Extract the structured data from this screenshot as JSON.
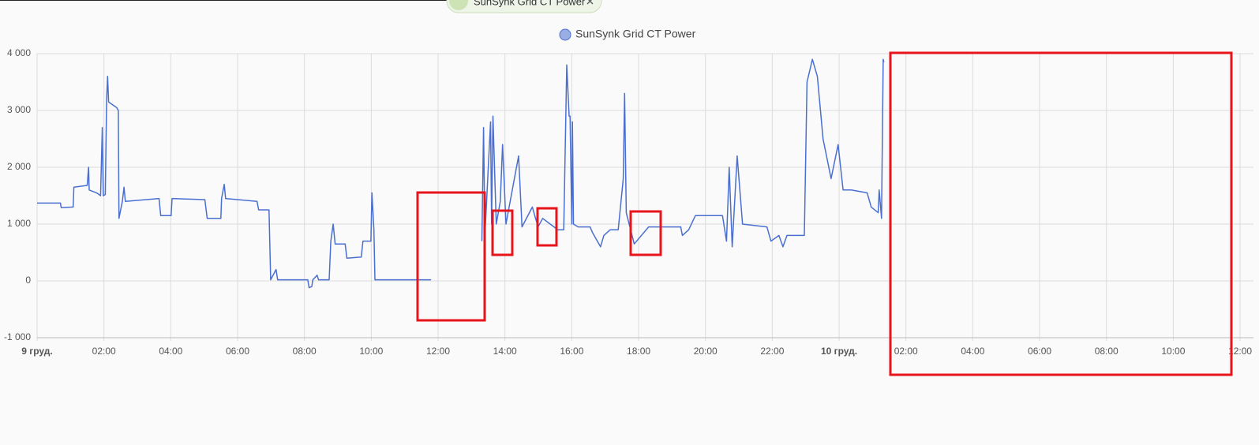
{
  "chip_label": "SunSynk Grid CT Power",
  "chart_data": {
    "type": "line",
    "x": [
      0,
      0.7,
      0.72,
      1.08,
      1.1,
      1.5,
      1.54,
      1.56,
      1.78,
      1.9,
      1.95,
      1.98,
      2.04,
      2.08,
      2.11,
      2.14,
      2.38,
      2.43,
      2.45,
      2.55,
      2.6,
      2.64,
      3.65,
      3.7,
      4.01,
      4.04,
      5.02,
      5.09,
      5.5,
      5.52,
      5.6,
      5.64,
      6.58,
      6.63,
      6.94,
      6.99,
      7.15,
      7.2,
      8.1,
      8.14,
      8.22,
      8.25,
      8.38,
      8.42,
      8.74,
      8.79,
      8.86,
      8.92,
      9.22,
      9.27,
      9.7,
      9.75,
      9.99,
      10.02,
      10.08,
      10.11,
      11.79,
      12.5,
      13.31,
      13.36,
      13.4,
      13.57,
      13.6,
      13.64,
      13.74,
      13.86,
      13.93,
      14.03,
      14.41,
      14.51,
      14.82,
      14.99,
      15.13,
      15.47,
      15.57,
      15.76,
      15.85,
      15.92,
      15.95,
      16.0,
      16.02,
      16.05,
      16.19,
      16.55,
      16.62,
      16.86,
      16.96,
      17.15,
      17.39,
      17.54,
      17.58,
      17.63,
      17.87,
      18.3,
      19.26,
      19.31,
      19.5,
      19.7,
      20.51,
      20.63,
      20.71,
      20.8,
      20.95,
      21.11,
      21.84,
      21.96,
      22.2,
      22.32,
      22.44,
      22.96,
      23.04,
      23.2,
      23.35,
      23.52,
      23.76,
      23.97,
      24.12,
      24.36,
      24.84,
      24.96,
      25.17,
      25.2,
      25.27,
      25.32,
      25.34
    ],
    "series": [
      {
        "name": "SunSynk Grid CT Power",
        "color": "#4a6fd0",
        "values": [
          1370,
          1370,
          1290,
          1300,
          1650,
          1680,
          2000,
          1600,
          1550,
          1500,
          2700,
          1500,
          1520,
          3200,
          3600,
          3150,
          3050,
          3000,
          1100,
          1400,
          1650,
          1400,
          1450,
          1150,
          1150,
          1450,
          1430,
          1100,
          1100,
          1450,
          1700,
          1450,
          1400,
          1250,
          1250,
          20,
          200,
          20,
          20,
          -120,
          -100,
          20,
          100,
          20,
          20,
          700,
          1000,
          650,
          650,
          400,
          420,
          700,
          700,
          1550,
          900,
          20,
          20,
          null,
          700,
          2700,
          800,
          2800,
          1000,
          2900,
          1000,
          1400,
          2400,
          1000,
          2200,
          950,
          1300,
          950,
          1100,
          950,
          900,
          900,
          3800,
          2900,
          2900,
          1000,
          2800,
          1000,
          950,
          950,
          850,
          600,
          800,
          900,
          900,
          1800,
          3300,
          1200,
          650,
          950,
          950,
          800,
          900,
          1150,
          1150,
          700,
          2000,
          600,
          2200,
          1000,
          950,
          700,
          800,
          600,
          800,
          800,
          3500,
          3900,
          3600,
          2500,
          1800,
          2400,
          1600,
          1600,
          1550,
          1300,
          1200,
          1600,
          1100,
          3900,
          3850
        ]
      }
    ],
    "xlim": [
      0,
      36.4
    ],
    "xticks": [
      {
        "value": 0,
        "label": "9 груд."
      },
      {
        "value": 2,
        "label": "02:00"
      },
      {
        "value": 4,
        "label": "04:00"
      },
      {
        "value": 6,
        "label": "06:00"
      },
      {
        "value": 8,
        "label": "08:00"
      },
      {
        "value": 10,
        "label": "10:00"
      },
      {
        "value": 12,
        "label": "12:00"
      },
      {
        "value": 14,
        "label": "14:00"
      },
      {
        "value": 16,
        "label": "16:00"
      },
      {
        "value": 18,
        "label": "18:00"
      },
      {
        "value": 20,
        "label": "20:00"
      },
      {
        "value": 22,
        "label": "22:00"
      },
      {
        "value": 24,
        "label": "10 груд."
      },
      {
        "value": 26,
        "label": "02:00"
      },
      {
        "value": 28,
        "label": "04:00"
      },
      {
        "value": 30,
        "label": "06:00"
      },
      {
        "value": 32,
        "label": "08:00"
      },
      {
        "value": 34,
        "label": "10:00"
      },
      {
        "value": 36,
        "label": "12:00"
      }
    ],
    "ylim": [
      -1000,
      4000
    ],
    "yticks": [
      {
        "value": -1000,
        "label": "-1 000"
      },
      0,
      {
        "value": 1000,
        "label": "1 000"
      },
      {
        "value": 2000,
        "label": "2 000"
      },
      {
        "value": 3000,
        "label": "3 000"
      },
      {
        "value": 4000,
        "label": "4 000"
      }
    ],
    "grid": true
  }
}
